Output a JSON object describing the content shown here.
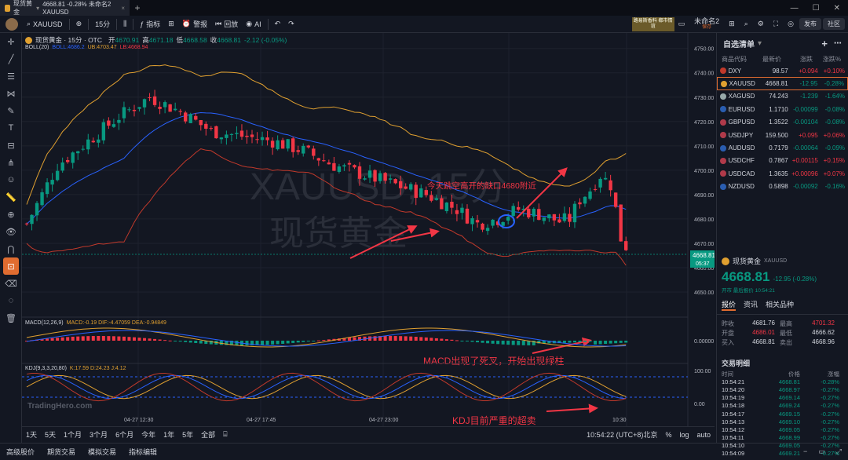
{
  "tab": {
    "title": "现货黄金",
    "subtitle": "4668.81 -0.28% 未命名2 XAUUSD"
  },
  "toolbar": {
    "symbol": "XAUUSD",
    "interval": "15分",
    "indicator": "指标",
    "alert": "警报",
    "replay": "回放",
    "ai": "AI",
    "ad": "路易斯香料 都市情谊",
    "layout": "未命名2",
    "layout_sub": "保存",
    "publish": "发布",
    "community": "社区"
  },
  "chart": {
    "title": "现货黄金 · 15分 · OTC",
    "open_label": "开",
    "open": "4670.91",
    "high_label": "高",
    "high": "4671.18",
    "low_label": "低",
    "low": "4668.58",
    "close_label": "收",
    "close": "4668.81",
    "change": "-2.12 (-0.05%)",
    "boll": "BOLL(20)",
    "boll_mid": "BOLL:4686.2",
    "boll_ub": "UB:4703.47",
    "boll_lb": "LB:4668.94",
    "watermark_symbol": "XAUUSD, 15分",
    "watermark_name": "现货黄金",
    "price_axis": [
      "4750.00",
      "4740.00",
      "4730.00",
      "4720.00",
      "4710.00",
      "4700.00",
      "4690.00",
      "4680.00",
      "4670.00",
      "4660.00",
      "4650.00"
    ],
    "last_price": "4668.81",
    "countdown": "05:37",
    "annotation_gap": "今天跳空高开的缺口4680附近",
    "annotation_macd": "MACD出现了死叉，开始出现绿柱",
    "annotation_kdj": "KDJ目前严重的超卖",
    "macd_label": "MACD(12,26,9)",
    "macd_vals": "MACD:-0.19  DIF:-4.47059  DEA:-0.94849",
    "macd_axis": "0.00000",
    "kdj_label": "KDJ(9,3,3,20,80)",
    "kdj_vals": "K:17.59  D:24.23  J:4.12",
    "kdj_axis": [
      "100.00",
      "0.00"
    ],
    "time_labels": [
      "04-27 12:30",
      "04-27 17:45",
      "04-27 23:00",
      "10:30"
    ],
    "logo": "TradingHero.com"
  },
  "bottombar": {
    "ranges": [
      "1天",
      "5天",
      "1个月",
      "3个月",
      "6个月",
      "今年",
      "1年",
      "5年",
      "全部"
    ],
    "clock": "10:54:22 (UTC+8)北京"
  },
  "footer": {
    "items": [
      "高级股价",
      "期货交易",
      "模拟交易",
      "指标编辑"
    ]
  },
  "watchlist": {
    "title": "自选清单",
    "cols": [
      "商品代码",
      "最新价",
      "涨跌",
      "涨跌%"
    ],
    "rows": [
      {
        "sym": "DXY",
        "price": "98.57",
        "chg": "+0.094",
        "pct": "+0.10%",
        "dir": "up",
        "color": "#c0392b"
      },
      {
        "sym": "XAUUSD",
        "price": "4668.81",
        "chg": "-12.95",
        "pct": "-0.28%",
        "dir": "dn",
        "color": "#e0a030",
        "sel": true
      },
      {
        "sym": "XAGUSD",
        "price": "74.243",
        "chg": "-1.239",
        "pct": "-1.64%",
        "dir": "dn",
        "color": "#9aa"
      },
      {
        "sym": "EURUSD",
        "price": "1.1710",
        "chg": "-0.00099",
        "pct": "-0.08%",
        "dir": "dn",
        "color": "#2a5db0"
      },
      {
        "sym": "GBPUSD",
        "price": "1.3522",
        "chg": "-0.00104",
        "pct": "-0.08%",
        "dir": "dn",
        "color": "#b03a4a"
      },
      {
        "sym": "USDJPY",
        "price": "159.500",
        "chg": "+0.095",
        "pct": "+0.06%",
        "dir": "up",
        "color": "#b03a4a"
      },
      {
        "sym": "AUDUSD",
        "price": "0.7179",
        "chg": "-0.00064",
        "pct": "-0.09%",
        "dir": "dn",
        "color": "#2a5db0"
      },
      {
        "sym": "USDCHF",
        "price": "0.7867",
        "chg": "+0.00115",
        "pct": "+0.15%",
        "dir": "up",
        "color": "#b03a4a"
      },
      {
        "sym": "USDCAD",
        "price": "1.3635",
        "chg": "+0.00096",
        "pct": "+0.07%",
        "dir": "up",
        "color": "#b03a4a"
      },
      {
        "sym": "NZDUSD",
        "price": "0.5898",
        "chg": "-0.00092",
        "pct": "-0.16%",
        "dir": "dn",
        "color": "#2a5db0"
      }
    ]
  },
  "detail": {
    "name": "现货黄金",
    "code": "XAUUSD",
    "price": "4668.81",
    "change": "-12.95 (-0.28%)",
    "status": "开市  最后报价 10:54:21",
    "tabs": [
      "报价",
      "资讯",
      "相关品种"
    ],
    "quote": [
      [
        "昨收",
        "4681.76",
        "最高",
        "4701.32"
      ],
      [
        "开盘",
        "4686.01",
        "最低",
        "4666.62"
      ],
      [
        "买入",
        "4668.81",
        "卖出",
        "4668.96"
      ]
    ],
    "trades_title": "交易明细",
    "trade_cols": [
      "时间",
      "价格",
      "涨幅"
    ],
    "trades": [
      [
        "10:54:21",
        "4668.81",
        "-0.28%"
      ],
      [
        "10:54:20",
        "4668.97",
        "-0.27%"
      ],
      [
        "10:54:19",
        "4669.14",
        "-0.27%"
      ],
      [
        "10:54:18",
        "4669.24",
        "-0.27%"
      ],
      [
        "10:54:17",
        "4669.15",
        "-0.27%"
      ],
      [
        "10:54:13",
        "4669.10",
        "-0.27%"
      ],
      [
        "10:54:12",
        "4669.05",
        "-0.27%"
      ],
      [
        "10:54:11",
        "4668.99",
        "-0.27%"
      ],
      [
        "10:54:10",
        "4669.05",
        "-0.27%"
      ],
      [
        "10:54:09",
        "4669.21",
        "-0.27%"
      ]
    ]
  }
}
